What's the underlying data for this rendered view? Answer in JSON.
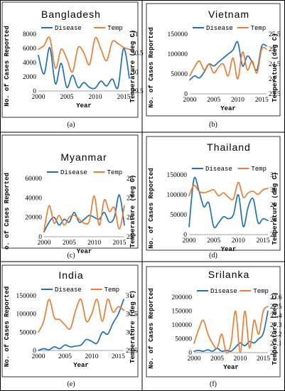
{
  "chart_data": [
    {
      "panel_label": "(a)",
      "title": "Bangladesh",
      "type": "line",
      "xlabel": "Year",
      "ylabel": "No. of Cases Reported",
      "y2label": "Temperature (deg C)",
      "xticks": [
        2000,
        2005,
        2010,
        2015
      ],
      "xlim": [
        2000,
        2016
      ],
      "ylim": [
        0,
        8000
      ],
      "yticks": [
        0,
        2000,
        4000,
        6000,
        8000
      ],
      "y2lim": [
        29.5,
        31
      ],
      "y2ticks": [
        "29.5",
        "30",
        "30.5",
        "31"
      ],
      "series": [
        {
          "name": "Disease",
          "axis": "left",
          "color": "#1f6fc1",
          "x": [
            2000,
            2001,
            2002,
            2003,
            2004,
            2005,
            2006,
            2007,
            2008,
            2009,
            2010,
            2011,
            2012,
            2013,
            2014,
            2015,
            2016
          ],
          "values": [
            5000,
            2400,
            6100,
            1000,
            3900,
            500,
            2200,
            470,
            1200,
            500,
            400,
            1400,
            700,
            1700,
            500,
            6000,
            1800
          ]
        },
        {
          "name": "Temp",
          "axis": "right",
          "color": "#ed7d31",
          "x": [
            2000,
            2001,
            2002,
            2003,
            2004,
            2005,
            2006,
            2007,
            2008,
            2009,
            2010,
            2011,
            2012,
            2013,
            2014,
            2015,
            2016
          ],
          "values": [
            30.6,
            30.7,
            30.9,
            30.1,
            30.6,
            30.35,
            30.0,
            30.65,
            30.5,
            30.2,
            30.9,
            30.6,
            30.3,
            30.8,
            30.75,
            30.65,
            30.6
          ]
        }
      ]
    },
    {
      "panel_label": "(b)",
      "title": "Vietnam",
      "type": "line",
      "xlabel": "Year",
      "ylabel": "No. of Cases Reported",
      "y2label": "Temperatue (deg C)",
      "xticks": [
        2000,
        2005,
        2010,
        2015
      ],
      "xlim": [
        2000,
        2016
      ],
      "ylim": [
        0,
        150000
      ],
      "yticks": [
        0,
        50000,
        100000,
        150000
      ],
      "y2lim": [
        23.5,
        25.5
      ],
      "y2ticks": [
        "23.5",
        "24",
        "24.5",
        "25",
        "25.5"
      ],
      "series": [
        {
          "name": "Disease",
          "axis": "left",
          "color": "#1f6fc1",
          "x": [
            2000,
            2001,
            2002,
            2003,
            2004,
            2005,
            2006,
            2007,
            2008,
            2009,
            2010,
            2011,
            2012,
            2013,
            2014,
            2015,
            2016
          ],
          "values": [
            35000,
            45000,
            40000,
            55000,
            75000,
            70000,
            80000,
            90000,
            100000,
            110000,
            130000,
            70000,
            95000,
            80000,
            60000,
            120000,
            120000
          ]
        },
        {
          "name": "Temp",
          "axis": "right",
          "color": "#ed7d31",
          "x": [
            2000,
            2001,
            2002,
            2003,
            2004,
            2005,
            2006,
            2007,
            2008,
            2009,
            2010,
            2011,
            2012,
            2013,
            2014,
            2015,
            2016
          ],
          "values": [
            24.1,
            24.4,
            24.6,
            24.3,
            24.5,
            24.2,
            24.4,
            24.5,
            24.1,
            24.7,
            24.0,
            24.9,
            24.3,
            24.6,
            24.2,
            25.0,
            25.0
          ]
        }
      ]
    },
    {
      "panel_label": "(c)",
      "title": "Myanmar",
      "type": "line",
      "xlabel": "Year",
      "ylabel": "o. of Cases Reported",
      "y2label": "Temperature (deg C)",
      "xticks": [
        2000,
        2005,
        2010,
        2015
      ],
      "xlim": [
        2000,
        2016
      ],
      "ylim": [
        0,
        60000
      ],
      "yticks": [
        0,
        20000,
        40000,
        60000
      ],
      "y2lim": [
        25,
        28
      ],
      "y2ticks": [
        "25",
        "26",
        "27",
        "28"
      ],
      "series": [
        {
          "name": "Disease",
          "axis": "left",
          "color": "#1f6fc1",
          "x": [
            2000,
            2001,
            2002,
            2003,
            2004,
            2005,
            2006,
            2007,
            2008,
            2009,
            2010,
            2011,
            2012,
            2013,
            2014,
            2015,
            2016
          ],
          "values": [
            5000,
            15000,
            20000,
            12000,
            18000,
            15000,
            25000,
            15000,
            18000,
            22000,
            20000,
            18000,
            25000,
            15000,
            20000,
            43000,
            12000
          ]
        },
        {
          "name": "Temp",
          "axis": "right",
          "color": "#ed7d31",
          "x": [
            2000,
            2001,
            2002,
            2003,
            2004,
            2005,
            2006,
            2007,
            2008,
            2009,
            2010,
            2011,
            2012,
            2013,
            2014,
            2015,
            2016
          ],
          "values": [
            25.3,
            26.6,
            25.7,
            26.1,
            25.6,
            26.0,
            26.1,
            25.9,
            25.7,
            25.8,
            27.1,
            25.6,
            26.9,
            26.3,
            26.5,
            25.4,
            26.6
          ]
        }
      ]
    },
    {
      "panel_label": "(d)",
      "title": "Thailand",
      "type": "line",
      "xlabel": "Year",
      "ylabel": "No. of Cases Reported",
      "y2label": "Temperature (deg C)",
      "xticks": [
        2000,
        2005,
        2010,
        2015
      ],
      "xlim": [
        2000,
        2016
      ],
      "ylim": [
        0,
        150000
      ],
      "yticks": [
        0,
        50000,
        100000,
        150000
      ],
      "y2lim": [
        27,
        31
      ],
      "y2ticks": [
        "27",
        "28",
        "29",
        "30",
        "31"
      ],
      "series": [
        {
          "name": "Disease",
          "axis": "left",
          "color": "#1f6fc1",
          "x": [
            2000,
            2001,
            2002,
            2003,
            2004,
            2005,
            2006,
            2007,
            2008,
            2009,
            2010,
            2011,
            2012,
            2013,
            2014,
            2015,
            2016
          ],
          "values": [
            20000,
            140000,
            110000,
            70000,
            80000,
            20000,
            30000,
            45000,
            40000,
            50000,
            100000,
            20000,
            70000,
            90000,
            30000,
            40000,
            35000
          ]
        },
        {
          "name": "Temp",
          "axis": "right",
          "color": "#ed7d31",
          "x": [
            2000,
            2001,
            2002,
            2003,
            2004,
            2005,
            2006,
            2007,
            2008,
            2009,
            2010,
            2011,
            2012,
            2013,
            2014,
            2015,
            2016
          ],
          "values": [
            29.6,
            30.3,
            29.9,
            29.8,
            29.9,
            30.0,
            29.6,
            29.8,
            29.5,
            29.4,
            30.5,
            29.5,
            29.8,
            29.9,
            29.7,
            30.0,
            30.1
          ]
        }
      ]
    },
    {
      "panel_label": "(e)",
      "title": "India",
      "type": "line",
      "xlabel": "Year",
      "ylabel": "No. of Cases Reported",
      "y2label": "Temperature (deg C)",
      "xticks": [
        2000,
        2005,
        2010,
        2015
      ],
      "xlim": [
        2000,
        2016
      ],
      "ylim": [
        0,
        150000
      ],
      "yticks": [
        0,
        50000,
        100000,
        150000
      ],
      "y2lim": [
        29.5,
        31
      ],
      "y2ticks": [
        "29.5",
        "30",
        "30.5",
        "31"
      ],
      "series": [
        {
          "name": "Disease",
          "axis": "left",
          "color": "#1f6fc1",
          "x": [
            2000,
            2001,
            2002,
            2003,
            2004,
            2005,
            2006,
            2007,
            2008,
            2009,
            2010,
            2011,
            2012,
            2013,
            2014,
            2015,
            2016
          ],
          "values": [
            0,
            5000,
            2000,
            10000,
            5000,
            15000,
            10000,
            12000,
            15000,
            30000,
            25000,
            20000,
            50000,
            45000,
            75000,
            100000,
            140000
          ]
        },
        {
          "name": "Temp",
          "axis": "right",
          "color": "#ed7d31",
          "x": [
            2000,
            2001,
            2002,
            2003,
            2004,
            2005,
            2006,
            2007,
            2008,
            2009,
            2010,
            2011,
            2012,
            2013,
            2014,
            2015,
            2016
          ],
          "values": [
            30.0,
            30.3,
            30.9,
            30.4,
            30.35,
            30.2,
            30.1,
            30.6,
            30.9,
            30.3,
            30.5,
            30.9,
            30.3,
            30.9,
            30.55,
            30.7,
            30.6
          ]
        }
      ]
    },
    {
      "panel_label": "(f)",
      "title": "Srilanka",
      "type": "line",
      "xlabel": "Year",
      "ylabel": "No. of Cases Reported",
      "y2label": "Temperature (deg C)",
      "xticks": [
        2000,
        2005,
        2010,
        2015
      ],
      "xlim": [
        2000,
        2016
      ],
      "ylim": [
        0,
        200000
      ],
      "yticks": [
        0,
        50000,
        100000,
        150000,
        200000
      ],
      "y2lim": [
        27,
        27.6
      ],
      "y2ticks": [
        "27",
        "27.1",
        "27.2",
        "27.3",
        "27.4",
        "27.5",
        "27.6"
      ],
      "series": [
        {
          "name": "Disease",
          "axis": "left",
          "color": "#1f6fc1",
          "x": [
            2000,
            2001,
            2002,
            2003,
            2004,
            2005,
            2006,
            2007,
            2008,
            2009,
            2010,
            2011,
            2012,
            2013,
            2014,
            2015,
            2016
          ],
          "values": [
            5000,
            8000,
            5000,
            10000,
            5000,
            15000,
            5000,
            8000,
            5000,
            20000,
            35000,
            25000,
            40000,
            35000,
            50000,
            70000,
            150000
          ]
        },
        {
          "name": "Temp",
          "axis": "right",
          "color": "#ed7d31",
          "x": [
            2000,
            2001,
            2002,
            2003,
            2004,
            2005,
            2006,
            2007,
            2008,
            2009,
            2010,
            2011,
            2012,
            2013,
            2014,
            2015,
            2016
          ],
          "values": [
            27.1,
            27.25,
            27.35,
            27.2,
            27.1,
            27.05,
            27.2,
            27.0,
            27.1,
            27.45,
            27.0,
            27.45,
            27.05,
            27.35,
            27.2,
            27.45,
            27.5
          ]
        }
      ]
    }
  ]
}
